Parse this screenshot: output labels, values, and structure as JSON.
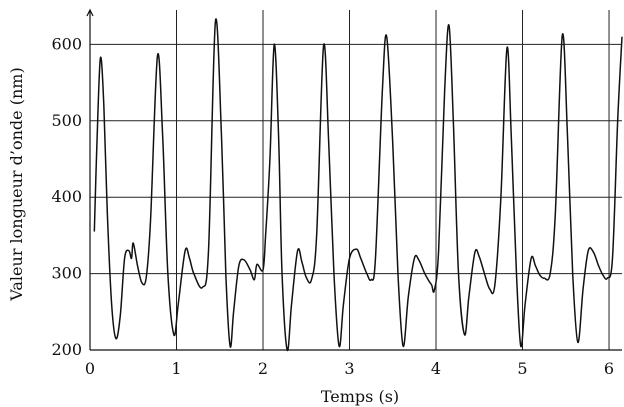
{
  "chart_data": {
    "type": "line",
    "title": "",
    "xlabel": "Temps (s)",
    "ylabel": "Valeur longueur d’onde (nm)",
    "xlim": [
      0,
      6.15
    ],
    "ylim": [
      200,
      645
    ],
    "grid": true,
    "x_ticks": [
      0,
      1,
      2,
      3,
      4,
      5,
      6
    ],
    "x_tick_labels": [
      "0",
      "1",
      "2",
      "3",
      "4",
      "5",
      "6"
    ],
    "y_ticks": [
      200,
      300,
      400,
      500,
      600
    ],
    "y_tick_labels": [
      "200",
      "300",
      "400",
      "500",
      "600"
    ],
    "line_color": "#111111",
    "series": [
      {
        "points": [
          [
            0.05,
            355
          ],
          [
            0.08,
            470
          ],
          [
            0.12,
            582
          ],
          [
            0.16,
            520
          ],
          [
            0.2,
            380
          ],
          [
            0.25,
            260
          ],
          [
            0.3,
            215
          ],
          [
            0.35,
            245
          ],
          [
            0.4,
            320
          ],
          [
            0.45,
            330
          ],
          [
            0.48,
            320
          ],
          [
            0.5,
            340
          ],
          [
            0.55,
            310
          ],
          [
            0.6,
            288
          ],
          [
            0.65,
            295
          ],
          [
            0.7,
            370
          ],
          [
            0.78,
            585
          ],
          [
            0.84,
            480
          ],
          [
            0.9,
            300
          ],
          [
            0.97,
            220
          ],
          [
            1.02,
            260
          ],
          [
            1.1,
            330
          ],
          [
            1.15,
            320
          ],
          [
            1.2,
            300
          ],
          [
            1.3,
            282
          ],
          [
            1.37,
            330
          ],
          [
            1.45,
            630
          ],
          [
            1.52,
            480
          ],
          [
            1.57,
            300
          ],
          [
            1.62,
            205
          ],
          [
            1.66,
            250
          ],
          [
            1.72,
            310
          ],
          [
            1.78,
            318
          ],
          [
            1.85,
            305
          ],
          [
            1.9,
            292
          ],
          [
            1.93,
            312
          ],
          [
            2.0,
            305
          ],
          [
            2.03,
            350
          ],
          [
            2.08,
            450
          ],
          [
            2.13,
            600
          ],
          [
            2.18,
            480
          ],
          [
            2.22,
            300
          ],
          [
            2.28,
            200
          ],
          [
            2.33,
            260
          ],
          [
            2.4,
            330
          ],
          [
            2.45,
            315
          ],
          [
            2.5,
            295
          ],
          [
            2.56,
            292
          ],
          [
            2.62,
            350
          ],
          [
            2.7,
            598
          ],
          [
            2.76,
            470
          ],
          [
            2.82,
            300
          ],
          [
            2.88,
            205
          ],
          [
            2.93,
            260
          ],
          [
            3.0,
            320
          ],
          [
            3.08,
            332
          ],
          [
            3.13,
            320
          ],
          [
            3.2,
            300
          ],
          [
            3.25,
            292
          ],
          [
            3.3,
            320
          ],
          [
            3.38,
            540
          ],
          [
            3.43,
            610
          ],
          [
            3.5,
            470
          ],
          [
            3.56,
            300
          ],
          [
            3.62,
            205
          ],
          [
            3.68,
            270
          ],
          [
            3.75,
            320
          ],
          [
            3.8,
            318
          ],
          [
            3.87,
            300
          ],
          [
            3.92,
            290
          ],
          [
            3.95,
            285
          ],
          [
            3.98,
            278
          ],
          [
            4.03,
            330
          ],
          [
            4.1,
            540
          ],
          [
            4.15,
            625
          ],
          [
            4.2,
            500
          ],
          [
            4.26,
            300
          ],
          [
            4.33,
            220
          ],
          [
            4.38,
            270
          ],
          [
            4.45,
            328
          ],
          [
            4.5,
            322
          ],
          [
            4.56,
            300
          ],
          [
            4.62,
            280
          ],
          [
            4.68,
            285
          ],
          [
            4.75,
            400
          ],
          [
            4.82,
            595
          ],
          [
            4.87,
            480
          ],
          [
            4.93,
            300
          ],
          [
            4.98,
            205
          ],
          [
            5.03,
            260
          ],
          [
            5.1,
            320
          ],
          [
            5.15,
            310
          ],
          [
            5.2,
            298
          ],
          [
            5.25,
            294
          ],
          [
            5.32,
            300
          ],
          [
            5.38,
            380
          ],
          [
            5.46,
            612
          ],
          [
            5.52,
            480
          ],
          [
            5.58,
            300
          ],
          [
            5.64,
            210
          ],
          [
            5.7,
            280
          ],
          [
            5.76,
            330
          ],
          [
            5.82,
            328
          ],
          [
            5.88,
            310
          ],
          [
            5.93,
            298
          ],
          [
            5.98,
            294
          ],
          [
            6.04,
            320
          ],
          [
            6.1,
            500
          ],
          [
            6.15,
            610
          ]
        ]
      }
    ]
  }
}
